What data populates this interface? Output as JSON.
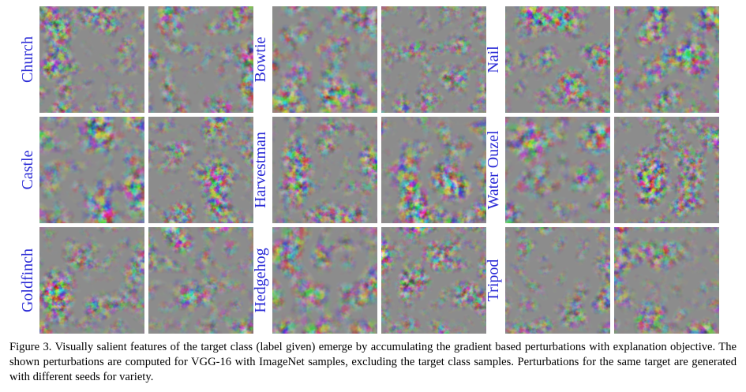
{
  "figure": {
    "panels": [
      {
        "label": "Church"
      },
      {
        "label": "Castle"
      },
      {
        "label": "Goldfinch"
      },
      {
        "label": "Bowtie"
      },
      {
        "label": "Harvestman"
      },
      {
        "label": "Hedgehog"
      },
      {
        "label": "Nail"
      },
      {
        "label": "Water Ouzel"
      },
      {
        "label": "Tripod"
      }
    ],
    "caption": "Figure 3. Visually salient features of the target class (label given) emerge by accumulating the gradient based perturbations with explanation objective. The shown perturbations are computed for VGG-16 with ImageNet samples, excluding the target class samples. Perturbations for the same target are generated with different seeds for variety."
  }
}
